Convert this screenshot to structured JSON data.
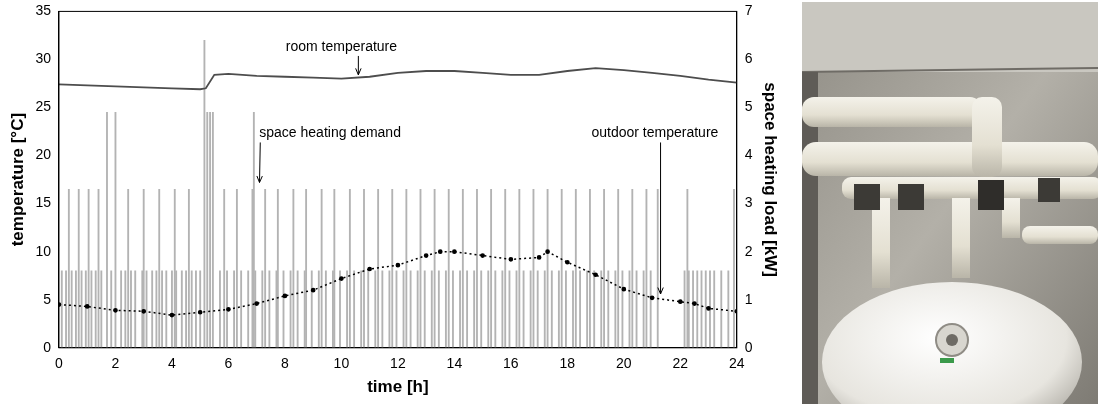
{
  "chart_data": {
    "type": "line",
    "x_label": "time [h]",
    "y_label": "temperature [°C]",
    "y2_label": "space heating load [kW]",
    "xlim": [
      0,
      24
    ],
    "xticks": [
      0,
      2,
      4,
      6,
      8,
      10,
      12,
      14,
      16,
      18,
      20,
      22,
      24
    ],
    "ylim": [
      0,
      35
    ],
    "yticks": [
      0,
      5,
      10,
      15,
      20,
      25,
      30,
      35
    ],
    "y2lim": [
      0,
      7
    ],
    "y2ticks": [
      0,
      1,
      2,
      3,
      4,
      5,
      6,
      7
    ],
    "grid": false,
    "series": [
      {
        "name": "room temperature",
        "color": "#4d4d4d",
        "line_style": "solid",
        "marker": "none",
        "x": [
          0,
          1,
          2,
          3,
          4,
          5,
          5.2,
          5.5,
          6,
          7,
          8,
          9,
          10,
          11,
          12,
          13,
          14,
          15,
          16,
          17,
          18,
          19,
          20,
          21,
          22,
          23,
          24
        ],
        "values": [
          27.4,
          27.3,
          27.2,
          27.1,
          27.0,
          26.9,
          27.0,
          28.4,
          28.5,
          28.3,
          28.2,
          28.1,
          28.0,
          28.2,
          28.6,
          28.8,
          28.8,
          28.6,
          28.4,
          28.4,
          28.8,
          29.1,
          28.9,
          28.6,
          28.3,
          27.9,
          27.6
        ]
      },
      {
        "name": "space heating demand",
        "type": "bar",
        "axis": "y2",
        "color": "#b3b3b3",
        "x": [
          0.1,
          0.25,
          0.45,
          0.6,
          0.8,
          0.95,
          1.15,
          1.3,
          1.5,
          1.85,
          2.2,
          2.35,
          2.55,
          2.7,
          2.95,
          3.1,
          3.3,
          3.45,
          3.65,
          3.8,
          4.0,
          4.15,
          4.35,
          4.5,
          4.7,
          4.85,
          5.0,
          5.7,
          5.95,
          6.2,
          6.45,
          6.7,
          6.95,
          7.2,
          7.45,
          7.7,
          7.95,
          8.2,
          8.45,
          8.7,
          8.95,
          9.2,
          9.45,
          9.7,
          9.95,
          10.2,
          10.45,
          10.7,
          10.95,
          11.2,
          11.45,
          11.7,
          11.95,
          12.2,
          12.45,
          12.7,
          12.95,
          13.2,
          13.45,
          13.7,
          13.95,
          14.2,
          14.45,
          14.7,
          14.95,
          15.2,
          15.45,
          15.7,
          15.95,
          16.2,
          16.45,
          16.7,
          16.95,
          17.2,
          17.45,
          17.7,
          17.95,
          18.2,
          18.45,
          18.7,
          18.95,
          19.2,
          19.45,
          19.7,
          19.95,
          20.2,
          20.45,
          20.7,
          20.95,
          22.15,
          22.3,
          22.45,
          22.6,
          22.75,
          22.9,
          23.05,
          23.2,
          23.45,
          23.7,
          0.35,
          0.7,
          1.05,
          1.4,
          2.45,
          3.0,
          3.55,
          4.1,
          4.6,
          5.85,
          6.3,
          6.85,
          7.3,
          7.75,
          8.3,
          8.75,
          9.3,
          9.75,
          10.3,
          10.8,
          11.3,
          11.8,
          12.3,
          12.8,
          13.3,
          13.8,
          14.3,
          14.8,
          15.3,
          15.8,
          16.3,
          16.8,
          17.3,
          17.8,
          18.3,
          18.8,
          19.3,
          19.8,
          20.3,
          20.8,
          21.2,
          22.25,
          23.9,
          1.7,
          2.0,
          5.15,
          5.25,
          5.35,
          5.45,
          6.9
        ],
        "values": [
          1.6,
          1.6,
          1.6,
          1.6,
          1.6,
          1.6,
          1.6,
          1.6,
          1.6,
          1.6,
          1.6,
          1.6,
          1.6,
          1.6,
          1.6,
          1.6,
          1.6,
          1.6,
          1.6,
          1.6,
          1.6,
          1.6,
          1.6,
          1.6,
          1.6,
          1.6,
          1.6,
          1.6,
          1.6,
          1.6,
          1.6,
          1.6,
          1.6,
          1.6,
          1.6,
          1.6,
          1.6,
          1.6,
          1.6,
          1.6,
          1.6,
          1.6,
          1.6,
          1.6,
          1.6,
          1.6,
          1.6,
          1.6,
          1.6,
          1.6,
          1.6,
          1.6,
          1.6,
          1.6,
          1.6,
          1.6,
          1.6,
          1.6,
          1.6,
          1.6,
          1.6,
          1.6,
          1.6,
          1.6,
          1.6,
          1.6,
          1.6,
          1.6,
          1.6,
          1.6,
          1.6,
          1.6,
          1.6,
          1.6,
          1.6,
          1.6,
          1.6,
          1.6,
          1.6,
          1.6,
          1.6,
          1.6,
          1.6,
          1.6,
          1.6,
          1.6,
          1.6,
          1.6,
          1.6,
          1.6,
          1.6,
          1.6,
          1.6,
          1.6,
          1.6,
          1.6,
          1.6,
          1.6,
          1.6,
          3.3,
          3.3,
          3.3,
          3.3,
          3.3,
          3.3,
          3.3,
          3.3,
          3.3,
          3.3,
          3.3,
          3.3,
          3.3,
          3.3,
          3.3,
          3.3,
          3.3,
          3.3,
          3.3,
          3.3,
          3.3,
          3.3,
          3.3,
          3.3,
          3.3,
          3.3,
          3.3,
          3.3,
          3.3,
          3.3,
          3.3,
          3.3,
          3.3,
          3.3,
          3.3,
          3.3,
          3.3,
          3.3,
          3.3,
          3.3,
          3.3,
          3.3,
          3.3,
          4.9,
          4.9,
          6.4,
          4.9,
          4.9,
          4.9,
          4.9
        ]
      },
      {
        "name": "outdoor temperature",
        "color": "#000000",
        "line_style": "dotted",
        "marker": "circle",
        "x": [
          0,
          1,
          2,
          3,
          4,
          5,
          6,
          7,
          8,
          9,
          10,
          11,
          12,
          13,
          13.5,
          14,
          15,
          16,
          17,
          17.3,
          18,
          19,
          20,
          21,
          22,
          22.5,
          23,
          24
        ],
        "values": [
          4.5,
          4.3,
          3.9,
          3.8,
          3.4,
          3.7,
          4.0,
          4.6,
          5.4,
          6.0,
          7.2,
          8.2,
          8.6,
          9.6,
          10.0,
          10.0,
          9.6,
          9.2,
          9.4,
          10.0,
          8.9,
          7.6,
          6.1,
          5.2,
          4.8,
          4.6,
          4.1,
          3.8
        ]
      }
    ]
  }
}
